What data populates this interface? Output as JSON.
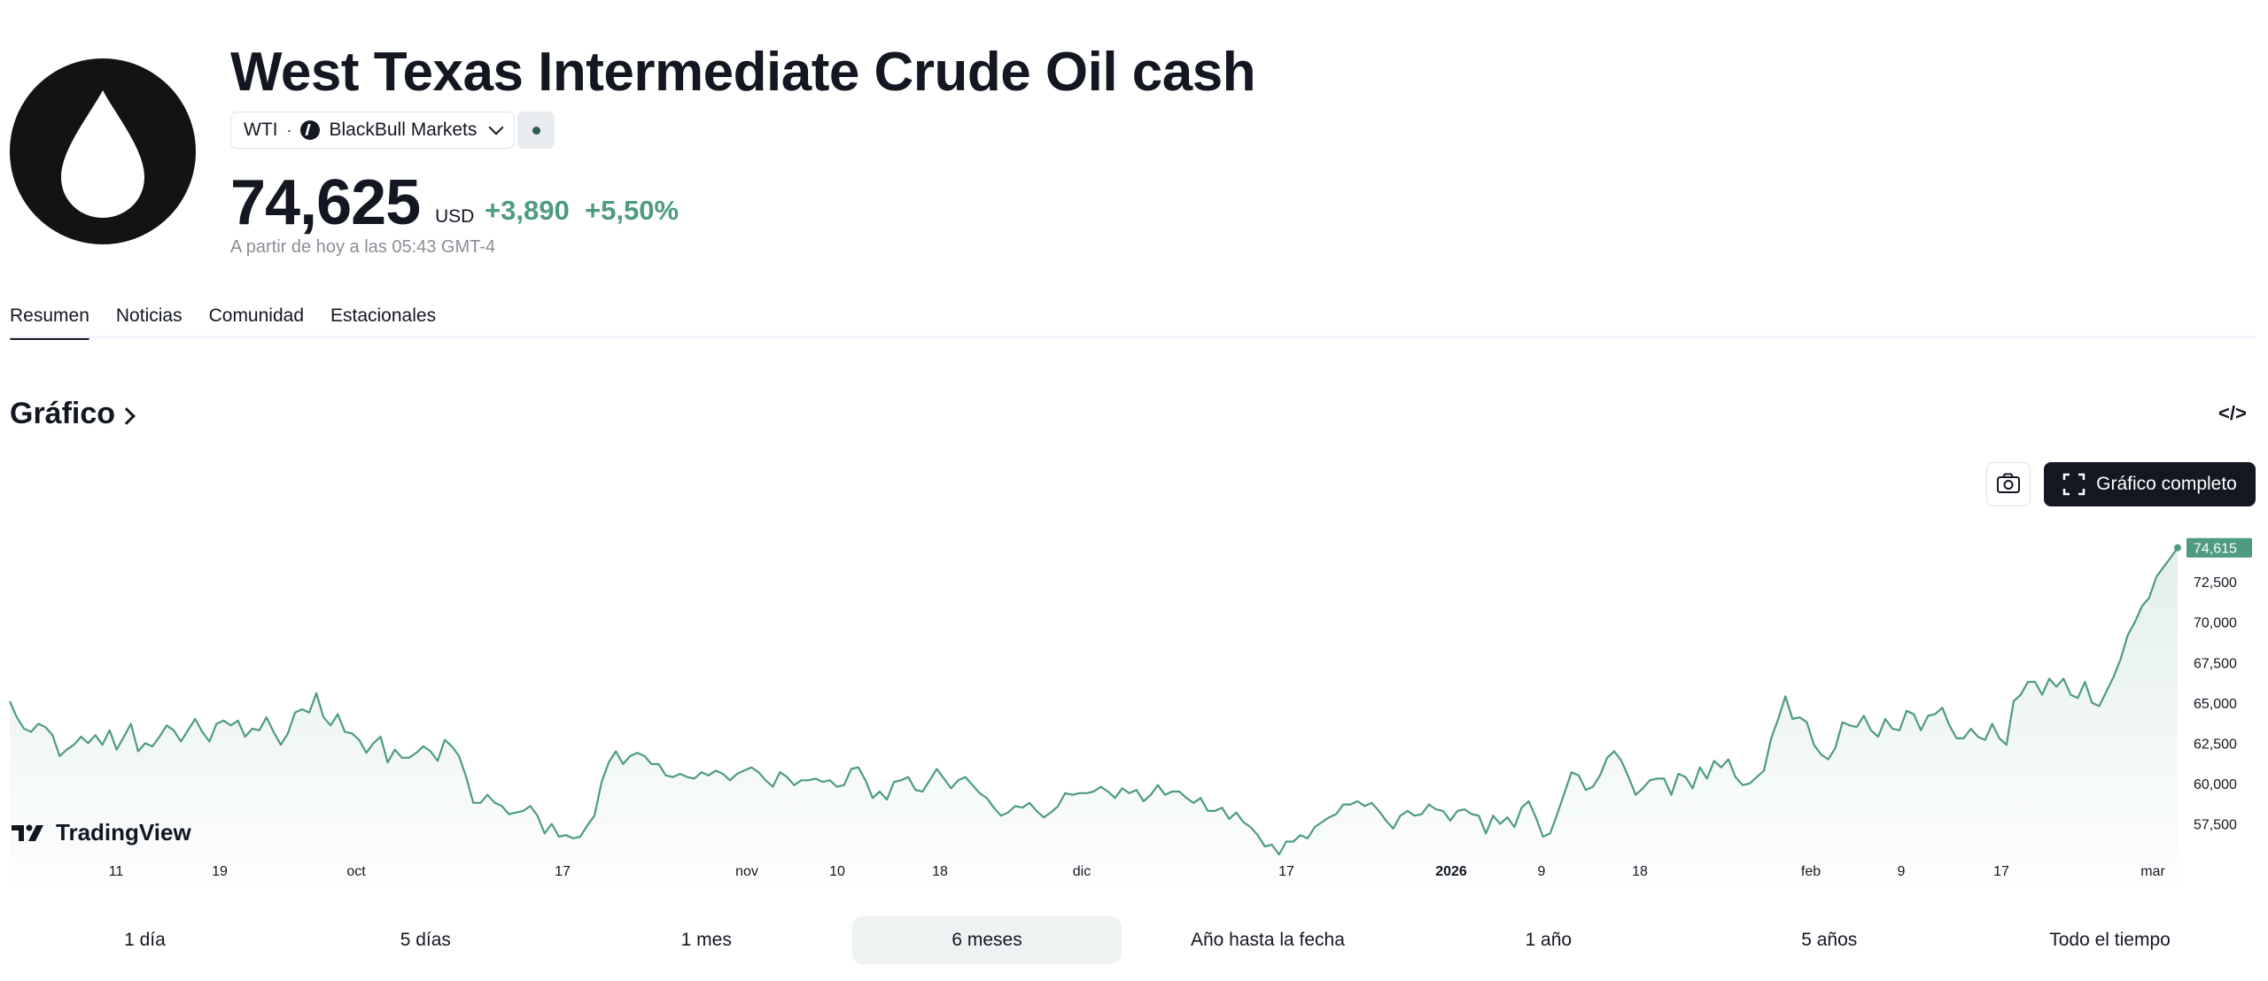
{
  "header": {
    "title": "West Texas Intermediate Crude Oil cash",
    "symbol": "WTI",
    "separator": "·",
    "exchange": "BlackBull Markets",
    "logo_icon": "oil-drop-icon",
    "status_icon": "market-status-dot"
  },
  "quote": {
    "price": "74,625",
    "currency": "USD",
    "change": "+3,890",
    "change_percent": "+5,50%",
    "as_of": "A partir de hoy a las 05:43 GMT-4",
    "change_color": "#4e9b81"
  },
  "tabs": [
    {
      "label": "Resumen",
      "active": true
    },
    {
      "label": "Noticias",
      "active": false
    },
    {
      "label": "Comunidad",
      "active": false
    },
    {
      "label": "Estacionales",
      "active": false
    }
  ],
  "chart_section": {
    "title": "Gráfico",
    "embed_label": "</>",
    "screenshot_icon": "camera-icon",
    "fullscreen_label": "Gráfico completo",
    "fullscreen_icon": "expand-icon",
    "watermark": "TradingView"
  },
  "chart_data": {
    "type": "area",
    "series": [
      {
        "name": "",
        "color": "#4e9b81"
      }
    ],
    "ylim": [
      55000,
      75200
    ],
    "yticks": [
      "72,500",
      "70,000",
      "67,500",
      "65,000",
      "62,500",
      "60,000",
      "57,500"
    ],
    "ytick_values": [
      72500,
      70000,
      67500,
      65000,
      62500,
      60000,
      57500
    ],
    "last_value_label": "74,615",
    "last_value": 74615,
    "xticks": [
      {
        "label": "11",
        "bold": false
      },
      {
        "label": "19",
        "bold": false
      },
      {
        "label": "oct",
        "bold": false
      },
      {
        "label": "17",
        "bold": false
      },
      {
        "label": "nov",
        "bold": false
      },
      {
        "label": "10",
        "bold": false
      },
      {
        "label": "18",
        "bold": false
      },
      {
        "label": "dic",
        "bold": false
      },
      {
        "label": "17",
        "bold": false
      },
      {
        "label": "2026",
        "bold": true
      },
      {
        "label": "9",
        "bold": false
      },
      {
        "label": "18",
        "bold": false
      },
      {
        "label": "feb",
        "bold": false
      },
      {
        "label": "9",
        "bold": false
      },
      {
        "label": "17",
        "bold": false
      },
      {
        "label": "mar",
        "bold": false
      }
    ],
    "values": [
      65100,
      64100,
      63400,
      63200,
      63700,
      63500,
      63000,
      61700,
      62100,
      62400,
      62900,
      62500,
      63000,
      62400,
      63300,
      62100,
      62900,
      63700,
      62000,
      62500,
      62300,
      62900,
      63600,
      63300,
      62600,
      63300,
      64000,
      63200,
      62600,
      63700,
      63900,
      63600,
      63900,
      62900,
      63400,
      63300,
      64100,
      63200,
      62400,
      63100,
      64400,
      64600,
      64400,
      65600,
      64100,
      63600,
      64300,
      63200,
      63100,
      62700,
      61900,
      62500,
      62900,
      61300,
      62100,
      61600,
      61600,
      61900,
      62300,
      62000,
      61400,
      62700,
      62300,
      61700,
      60400,
      58800,
      58800,
      59300,
      58800,
      58600,
      58100,
      58200,
      58300,
      58600,
      58000,
      56900,
      57500,
      56700,
      56800,
      56600,
      56700,
      57400,
      58000,
      60100,
      61300,
      62000,
      61200,
      61700,
      61900,
      61700,
      61200,
      61200,
      60500,
      60400,
      60600,
      60400,
      60300,
      60700,
      60500,
      60800,
      60600,
      60200,
      60600,
      60800,
      61000,
      60700,
      60200,
      59800,
      60700,
      60400,
      59900,
      60200,
      60200,
      60300,
      60100,
      60200,
      59800,
      59900,
      60900,
      61000,
      60200,
      59100,
      59500,
      59000,
      60100,
      60200,
      60400,
      59600,
      59500,
      60200,
      60900,
      60300,
      59700,
      60200,
      60400,
      59900,
      59400,
      59100,
      58500,
      58000,
      58200,
      58600,
      58500,
      58800,
      58300,
      57900,
      58200,
      58600,
      59400,
      59300,
      59400,
      59400,
      59500,
      59800,
      59500,
      59100,
      59700,
      59400,
      59600,
      58900,
      59300,
      59900,
      59300,
      59500,
      59500,
      59100,
      58800,
      59100,
      58300,
      58300,
      58500,
      57800,
      58200,
      57600,
      57300,
      56800,
      56100,
      56200,
      55600,
      56400,
      56400,
      56800,
      56600,
      57300,
      57600,
      57900,
      58100,
      58700,
      58700,
      58900,
      58600,
      58800,
      58300,
      57700,
      57200,
      58000,
      58300,
      58000,
      58100,
      58700,
      58400,
      58300,
      57700,
      58300,
      58400,
      58100,
      58000,
      56900,
      58000,
      57500,
      57900,
      57300,
      58500,
      58900,
      57900,
      56700,
      56900,
      58100,
      59400,
      60700,
      60500,
      59600,
      59800,
      60500,
      61600,
      62000,
      61400,
      60400,
      59300,
      59700,
      60200,
      60300,
      60300,
      59300,
      60600,
      60400,
      59700,
      61000,
      60300,
      61400,
      61000,
      61500,
      60400,
      59900,
      60000,
      60400,
      60800,
      62800,
      64000,
      65400,
      64000,
      64100,
      63800,
      62400,
      61800,
      61500,
      62200,
      63800,
      63600,
      63500,
      64200,
      63300,
      62900,
      64000,
      63400,
      63300,
      64500,
      64300,
      63300,
      64200,
      64300,
      64700,
      63600,
      62800,
      62800,
      63400,
      62900,
      62700,
      63700,
      62800,
      62400,
      65100,
      65500,
      66300,
      66300,
      65500,
      66500,
      66000,
      66500,
      65500,
      65300,
      66300,
      65000,
      64800,
      65700,
      66600,
      67700,
      69200,
      70000,
      71000,
      71500,
      72800,
      73400,
      74000,
      74615
    ]
  },
  "ranges": [
    {
      "label": "1 día",
      "active": false
    },
    {
      "label": "5 días",
      "active": false
    },
    {
      "label": "1 mes",
      "active": false
    },
    {
      "label": "6 meses",
      "active": true
    },
    {
      "label": "Año hasta la fecha",
      "active": false
    },
    {
      "label": "1 año",
      "active": false
    },
    {
      "label": "5 años",
      "active": false
    },
    {
      "label": "Todo el tiempo",
      "active": false
    }
  ]
}
